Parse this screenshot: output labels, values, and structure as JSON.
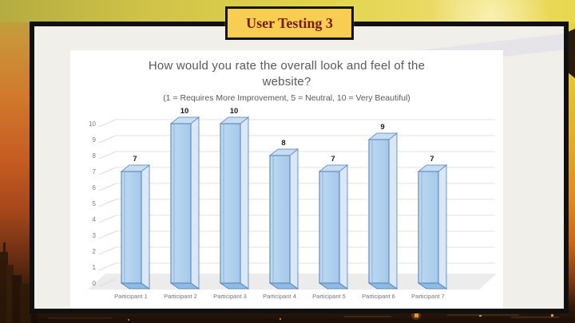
{
  "slide": {
    "title": "User Testing 3"
  },
  "chart": {
    "title_line1": "How would you rate the overall look and feel of the",
    "title_line2": "website?",
    "subtitle": "(1 = Requires More Improvement, 5 = Neutral, 10 = Very Beautiful)"
  },
  "chart_data": {
    "type": "bar",
    "style": "3d-column",
    "title": "How would you rate the overall look and feel of the website?",
    "subtitle": "(1 = Requires More Improvement, 5 = Neutral, 10 = Very Beautiful)",
    "categories": [
      "Participant 1",
      "Participant 2",
      "Participant 3",
      "Participant 4",
      "Participant 5",
      "Participant 6",
      "Participant 7"
    ],
    "values": [
      7,
      10,
      10,
      8,
      7,
      9,
      7
    ],
    "data_labels": [
      7,
      10,
      10,
      8,
      7,
      9,
      7
    ],
    "xlabel": "",
    "ylabel": "",
    "ylim": [
      0,
      10
    ],
    "yticks": [
      0,
      1,
      2,
      3,
      4,
      5,
      6,
      7,
      8,
      9,
      10
    ],
    "grid": true,
    "legend": false,
    "colors": {
      "bar_front_light": "#BFD9F1",
      "bar_front": "#A5C9EB",
      "bar_top": "#C8DDF2",
      "bar_side": "#DAE8F6",
      "bar_base": "#8FBBE4",
      "bar_outline": "#4E7DB5",
      "gridline": "#E3E3E3",
      "floor": "#ECECEC",
      "axis_text": "#7A7A7A",
      "category_text": "#757575",
      "data_label_text": "#1A1A1A",
      "title_text": "#595959"
    }
  },
  "theme": {
    "card_bg": "#F0EFEA",
    "card_border": "#101010",
    "title_box_bg": "#F8CE52",
    "title_box_border": "#141414",
    "title_text": "#771B0D",
    "bg_yellow": "#E7D64E",
    "bg_orange": "#DD8A22",
    "bg_dark": "#1A0F07"
  }
}
